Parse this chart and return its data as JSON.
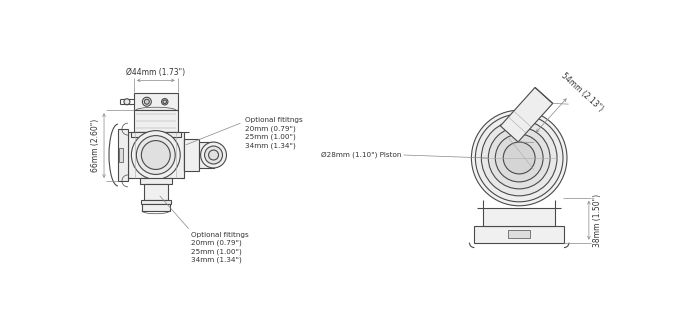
{
  "bg_color": "#ffffff",
  "line_color": "#4a4a4a",
  "dim_color": "#888888",
  "text_color": "#333333",
  "figsize": [
    6.73,
    3.16
  ],
  "dpi": 100,
  "annotations_left": {
    "top_dim_label": "Ø44mm (1.73\")",
    "side_dim_label": "66mm (2.60\")",
    "opt_top_label": "Optional fititngs\n20mm (0.79\")\n25mm (1.00\")\n34mm (1.34\")",
    "opt_bot_label": "Optional fititngs\n20mm (0.79\")\n25mm (1.00\")\n34mm (1.34\")"
  },
  "annotations_right": {
    "diag_dim_label": "54mm (2.13\")",
    "piston_label": "Ø28mm (1.10\") Piston",
    "bot_dim_label": "38mm (1.50\")"
  }
}
